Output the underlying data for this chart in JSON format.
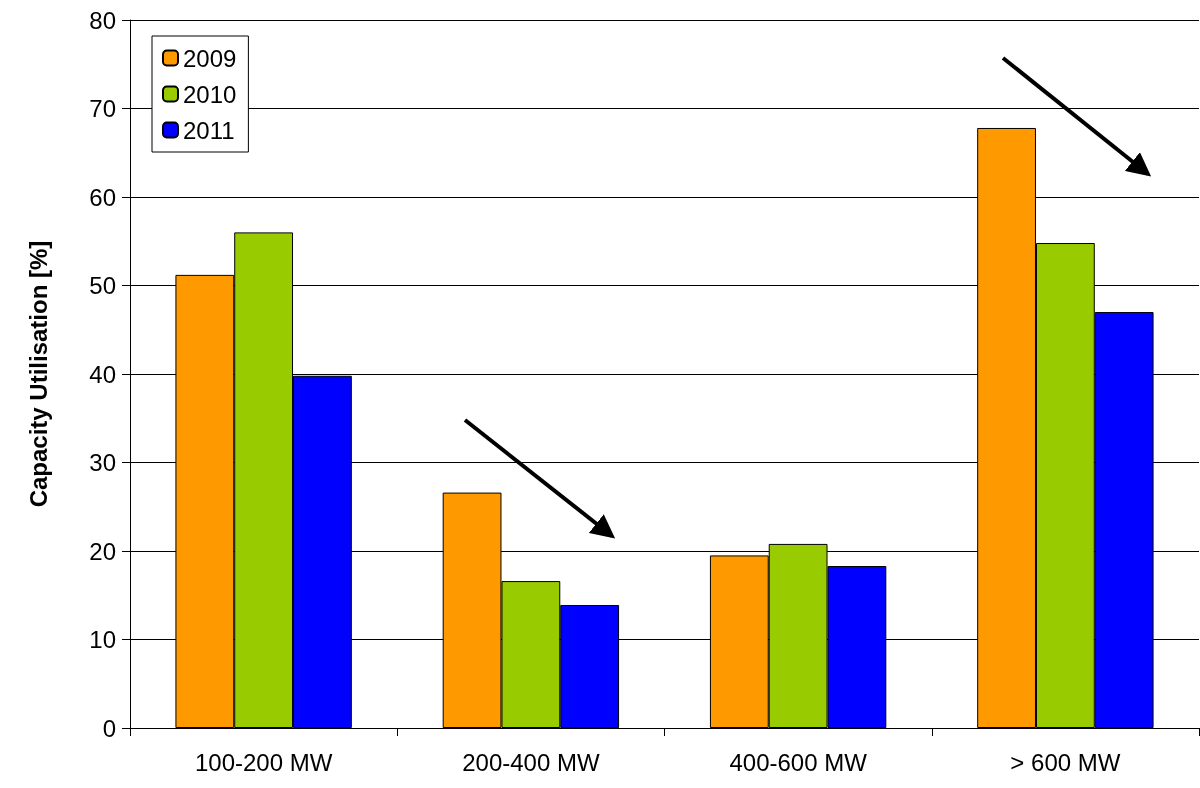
{
  "chart_data": {
    "type": "bar",
    "ylabel": "Capacity Utilisation [%]",
    "categories": [
      "100-200 MW",
      "200-400 MW",
      "400-600 MW",
      "> 600 MW"
    ],
    "series": [
      {
        "name": "2009",
        "color": "#ff9900",
        "values": [
          51.2,
          26.6,
          19.5,
          67.8
        ]
      },
      {
        "name": "2010",
        "color": "#99cc00",
        "values": [
          56.0,
          16.6,
          20.8,
          54.8
        ]
      },
      {
        "name": "2011",
        "color": "#0000ff",
        "values": [
          39.8,
          13.9,
          18.3,
          47.0
        ]
      }
    ],
    "ylim": [
      0,
      80
    ],
    "yticks": [
      0,
      10,
      20,
      30,
      40,
      50,
      60,
      70,
      80
    ],
    "grid": "y",
    "legend": "top left"
  }
}
